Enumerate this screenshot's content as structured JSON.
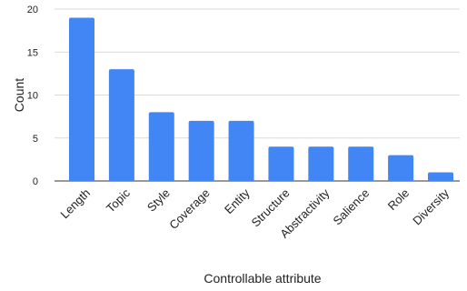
{
  "chart_data": {
    "type": "bar",
    "title": "",
    "categories": [
      "Length",
      "Topic",
      "Style",
      "Coverage",
      "Entity",
      "Structure",
      "Abstractivity",
      "Salience",
      "Role",
      "Diversity"
    ],
    "values": [
      19,
      13,
      8,
      7,
      7,
      4,
      4,
      4,
      3,
      1
    ],
    "xlabel": "Controllable attribute",
    "ylabel": "Count",
    "ylim": [
      0,
      20
    ],
    "yticks": [
      0,
      5,
      10,
      15,
      20
    ],
    "grid": "horizontal",
    "legend": "none",
    "colors": {
      "bar": "#4285f4",
      "grid": "#d9d9d9",
      "axis": "#333333"
    }
  }
}
